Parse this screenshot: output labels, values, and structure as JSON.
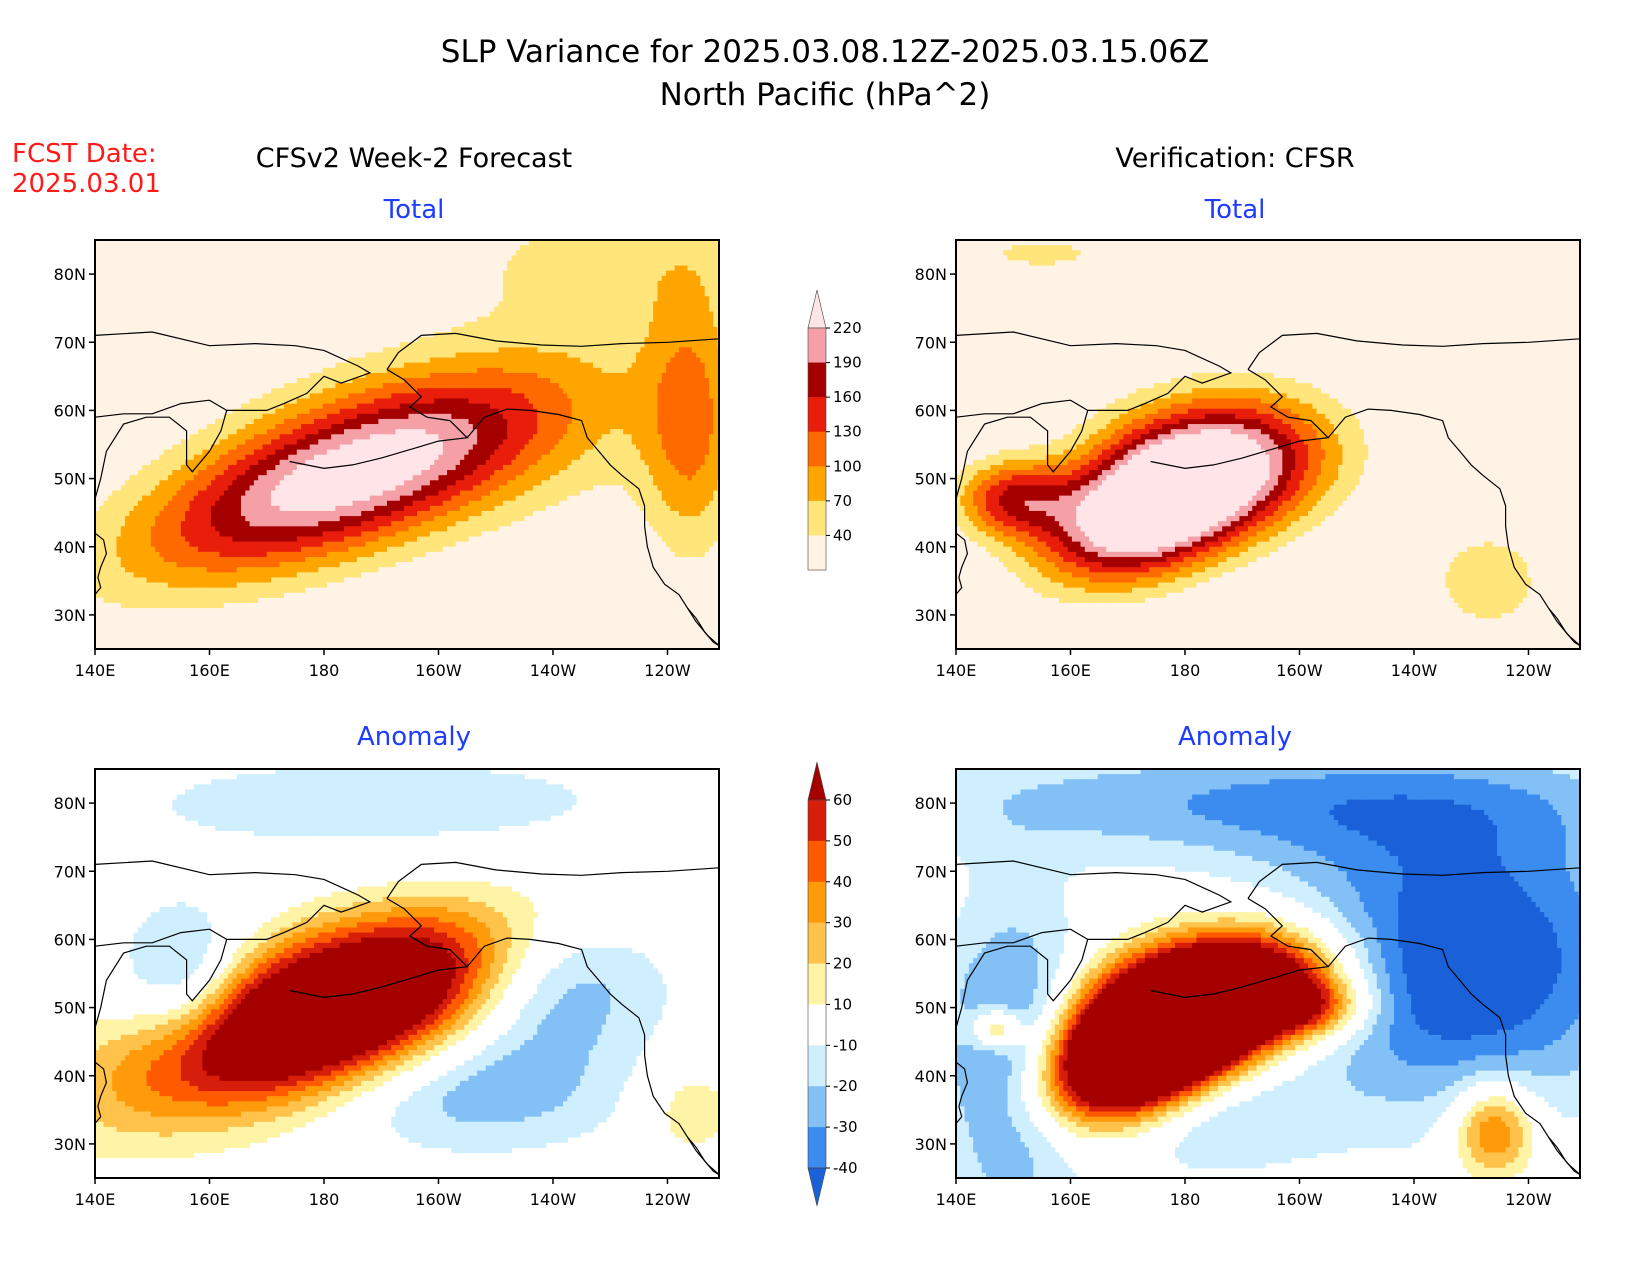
{
  "header": {
    "title_line1": "SLP Variance for 2025.03.08.12Z-2025.03.15.06Z",
    "title_line2": "North Pacific (hPa^2)"
  },
  "fcst": {
    "label": "FCST Date:",
    "date": "2025.03.01"
  },
  "columns": {
    "left": "CFSv2 Week-2 Forecast",
    "right": "Verification: CFSR"
  },
  "colors": {
    "text": "#000000",
    "fcst_text": "#ff1a1a",
    "panel_title": "#1e3cff",
    "coast": "#000000"
  },
  "chart_data": [
    {
      "type": "heatmap",
      "panel": "forecast-total",
      "title": "Total",
      "x_ticks": [
        "140E",
        "160E",
        "180",
        "160W",
        "140W",
        "120W"
      ],
      "y_ticks": [
        "30N",
        "40N",
        "50N",
        "60N",
        "70N",
        "80N"
      ],
      "x_range_deg_east": [
        140,
        249
      ],
      "y_range_deg_north": [
        25,
        85
      ],
      "levels": [
        40,
        70,
        100,
        130,
        160,
        190,
        220
      ],
      "features": [
        {
          "name": "main-max",
          "center": [
            183,
            50
          ],
          "peak": 235,
          "sx": 26,
          "sy": 7.5,
          "tilt": 0.28
        },
        {
          "name": "ridge-east",
          "center": [
            210,
            57
          ],
          "peak": 40,
          "sx": 30,
          "sy": 11,
          "tilt": 0
        },
        {
          "name": "arctic-band",
          "center": [
            230,
            82
          ],
          "peak": 50,
          "sx": 22,
          "sy": 7,
          "tilt": 0
        },
        {
          "name": "coast-band",
          "center": [
            244,
            58
          ],
          "peak": 95,
          "sx": 6,
          "sy": 14,
          "tilt": 0
        }
      ]
    },
    {
      "type": "heatmap",
      "panel": "verification-total",
      "title": "Total",
      "x_ticks": [
        "140E",
        "160E",
        "180",
        "160W",
        "140W",
        "120W"
      ],
      "y_ticks": [
        "30N",
        "40N",
        "50N",
        "60N",
        "70N",
        "80N"
      ],
      "x_range_deg_east": [
        140,
        249
      ],
      "y_range_deg_north": [
        25,
        85
      ],
      "levels": [
        40,
        70,
        100,
        130,
        160,
        190,
        220
      ],
      "features": [
        {
          "name": "main-max-sw",
          "center": [
            172,
            44
          ],
          "peak": 245,
          "sx": 12,
          "sy": 6,
          "tilt": 0.25
        },
        {
          "name": "main-max-ne",
          "center": [
            185,
            52
          ],
          "peak": 245,
          "sx": 14,
          "sy": 7,
          "tilt": 0.1
        },
        {
          "name": "west-lobe",
          "center": [
            150,
            47
          ],
          "peak": 150,
          "sx": 7,
          "sy": 4,
          "tilt": 0
        },
        {
          "name": "arctic-band",
          "center": [
            155,
            83
          ],
          "peak": 45,
          "sx": 14,
          "sy": 3,
          "tilt": 0
        },
        {
          "name": "se-blob",
          "center": [
            233,
            35
          ],
          "peak": 60,
          "sx": 8,
          "sy": 6,
          "tilt": 0
        }
      ]
    },
    {
      "type": "heatmap",
      "panel": "forecast-anomaly",
      "title": "Anomaly",
      "x_ticks": [
        "140E",
        "160E",
        "180",
        "160W",
        "140W",
        "120W"
      ],
      "y_ticks": [
        "30N",
        "40N",
        "50N",
        "60N",
        "70N",
        "80N"
      ],
      "x_range_deg_east": [
        140,
        249
      ],
      "y_range_deg_north": [
        25,
        85
      ],
      "levels": [
        -40,
        -30,
        -20,
        -10,
        10,
        20,
        30,
        40,
        50,
        60
      ],
      "features": [
        {
          "name": "positive-core",
          "center": [
            182,
            50
          ],
          "peak": 120,
          "sx": 25,
          "sy": 7.5,
          "tilt": 0.28
        },
        {
          "name": "gulf-alaska-neg",
          "center": [
            218,
            55
          ],
          "peak": -40,
          "sx": 14,
          "sy": 9,
          "tilt": 0
        },
        {
          "name": "kamchatka-neg",
          "center": [
            156,
            53
          ],
          "peak": -34,
          "sx": 8,
          "sy": 8,
          "tilt": 0
        },
        {
          "name": "subtropical-neg",
          "center": [
            206,
            37
          ],
          "peak": -24,
          "sx": 18,
          "sy": 6,
          "tilt": 0
        },
        {
          "name": "arctic-neg",
          "center": [
            190,
            80
          ],
          "peak": -15,
          "sx": 40,
          "sy": 6,
          "tilt": 0
        },
        {
          "name": "se-pos",
          "center": [
            244,
            35
          ],
          "peak": 18,
          "sx": 6,
          "sy": 5,
          "tilt": 0
        }
      ]
    },
    {
      "type": "heatmap",
      "panel": "verification-anomaly",
      "title": "Anomaly",
      "x_ticks": [
        "140E",
        "160E",
        "180",
        "160W",
        "140W",
        "120W"
      ],
      "y_ticks": [
        "30N",
        "40N",
        "50N",
        "60N",
        "70N",
        "80N"
      ],
      "x_range_deg_east": [
        140,
        249
      ],
      "y_range_deg_north": [
        25,
        85
      ],
      "levels": [
        -40,
        -30,
        -20,
        -10,
        10,
        20,
        30,
        40,
        50,
        60
      ],
      "features": [
        {
          "name": "positive-sw",
          "center": [
            172,
            43
          ],
          "peak": 150,
          "sx": 12,
          "sy": 6,
          "tilt": 0.3
        },
        {
          "name": "positive-ne",
          "center": [
            186,
            52
          ],
          "peak": 135,
          "sx": 14,
          "sy": 6,
          "tilt": 0.15
        },
        {
          "name": "positive-east-tongue",
          "center": [
            202,
            50
          ],
          "peak": 40,
          "sx": 7,
          "sy": 3,
          "tilt": 0
        },
        {
          "name": "west-pos",
          "center": [
            147,
            47
          ],
          "peak": 45,
          "sx": 3,
          "sy": 2,
          "tilt": 0
        },
        {
          "name": "big-neg-east",
          "center": [
            228,
            57
          ],
          "peak": -55,
          "sx": 22,
          "sy": 15,
          "tilt": 0
        },
        {
          "name": "neg-west",
          "center": [
            150,
            42
          ],
          "peak": -42,
          "sx": 9,
          "sy": 16,
          "tilt": 0
        },
        {
          "name": "neg-arctic",
          "center": [
            195,
            80
          ],
          "peak": -30,
          "sx": 45,
          "sy": 6,
          "tilt": 0
        },
        {
          "name": "neg-south",
          "center": [
            182,
            34
          ],
          "peak": -22,
          "sx": 15,
          "sy": 6,
          "tilt": 0
        },
        {
          "name": "se-pos",
          "center": [
            234,
            32
          ],
          "peak": 50,
          "sx": 5,
          "sy": 5,
          "tilt": 0
        }
      ]
    }
  ],
  "legends": {
    "total": {
      "labels": [
        "40",
        "70",
        "100",
        "130",
        "160",
        "190",
        "220"
      ],
      "colors": [
        "#fff3e6",
        "#ffe57a",
        "#ffa500",
        "#ff6a00",
        "#e81e0a",
        "#a50000",
        "#f4a0a6",
        "#ffe5e8"
      ]
    },
    "anomaly": {
      "labels": [
        "-40",
        "-30",
        "-20",
        "-10",
        "10",
        "20",
        "30",
        "40",
        "50",
        "60"
      ],
      "colors": [
        "#1a60d8",
        "#3c8cf0",
        "#82c0f5",
        "#cfefff",
        "#ffffff",
        "#fff4a6",
        "#ffc24a",
        "#ff9b0a",
        "#ff5a00",
        "#d61e0a",
        "#a50000"
      ]
    }
  }
}
